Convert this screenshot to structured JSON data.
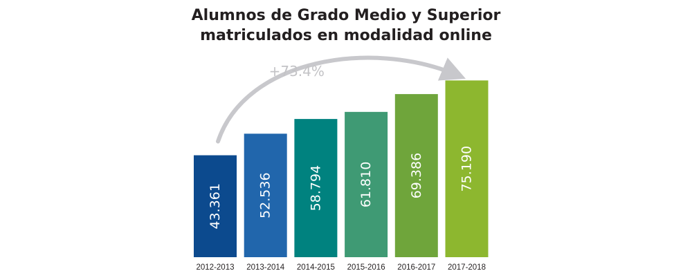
{
  "chart_data": {
    "type": "bar",
    "title": "Alumnos de Grado Medio y Superior matriculados en modalidad online",
    "title_lines": [
      "Alumnos de Grado Medio y Superior",
      "matriculados en modalidad online"
    ],
    "categories": [
      "2012-2013",
      "2013-2014",
      "2014-2015",
      "2015-2016",
      "2016-2017",
      "2017-2018"
    ],
    "values": [
      43361,
      52536,
      58794,
      61810,
      69386,
      75190
    ],
    "value_labels": [
      "43.361",
      "52.536",
      "58.794",
      "61.810",
      "69.386",
      "75.190"
    ],
    "bar_colors": [
      "#0c4a8e",
      "#2166ac",
      "#00827f",
      "#3f9a74",
      "#6fa53b",
      "#8db72f"
    ],
    "annotation": {
      "text": "+73.4%",
      "from_category": "2012-2013",
      "to_category": "2017-2018",
      "color": "#c8c8cc"
    },
    "xlabel": "",
    "ylabel": "",
    "ylim": [
      0,
      90000
    ],
    "grid": false,
    "legend": "none"
  }
}
